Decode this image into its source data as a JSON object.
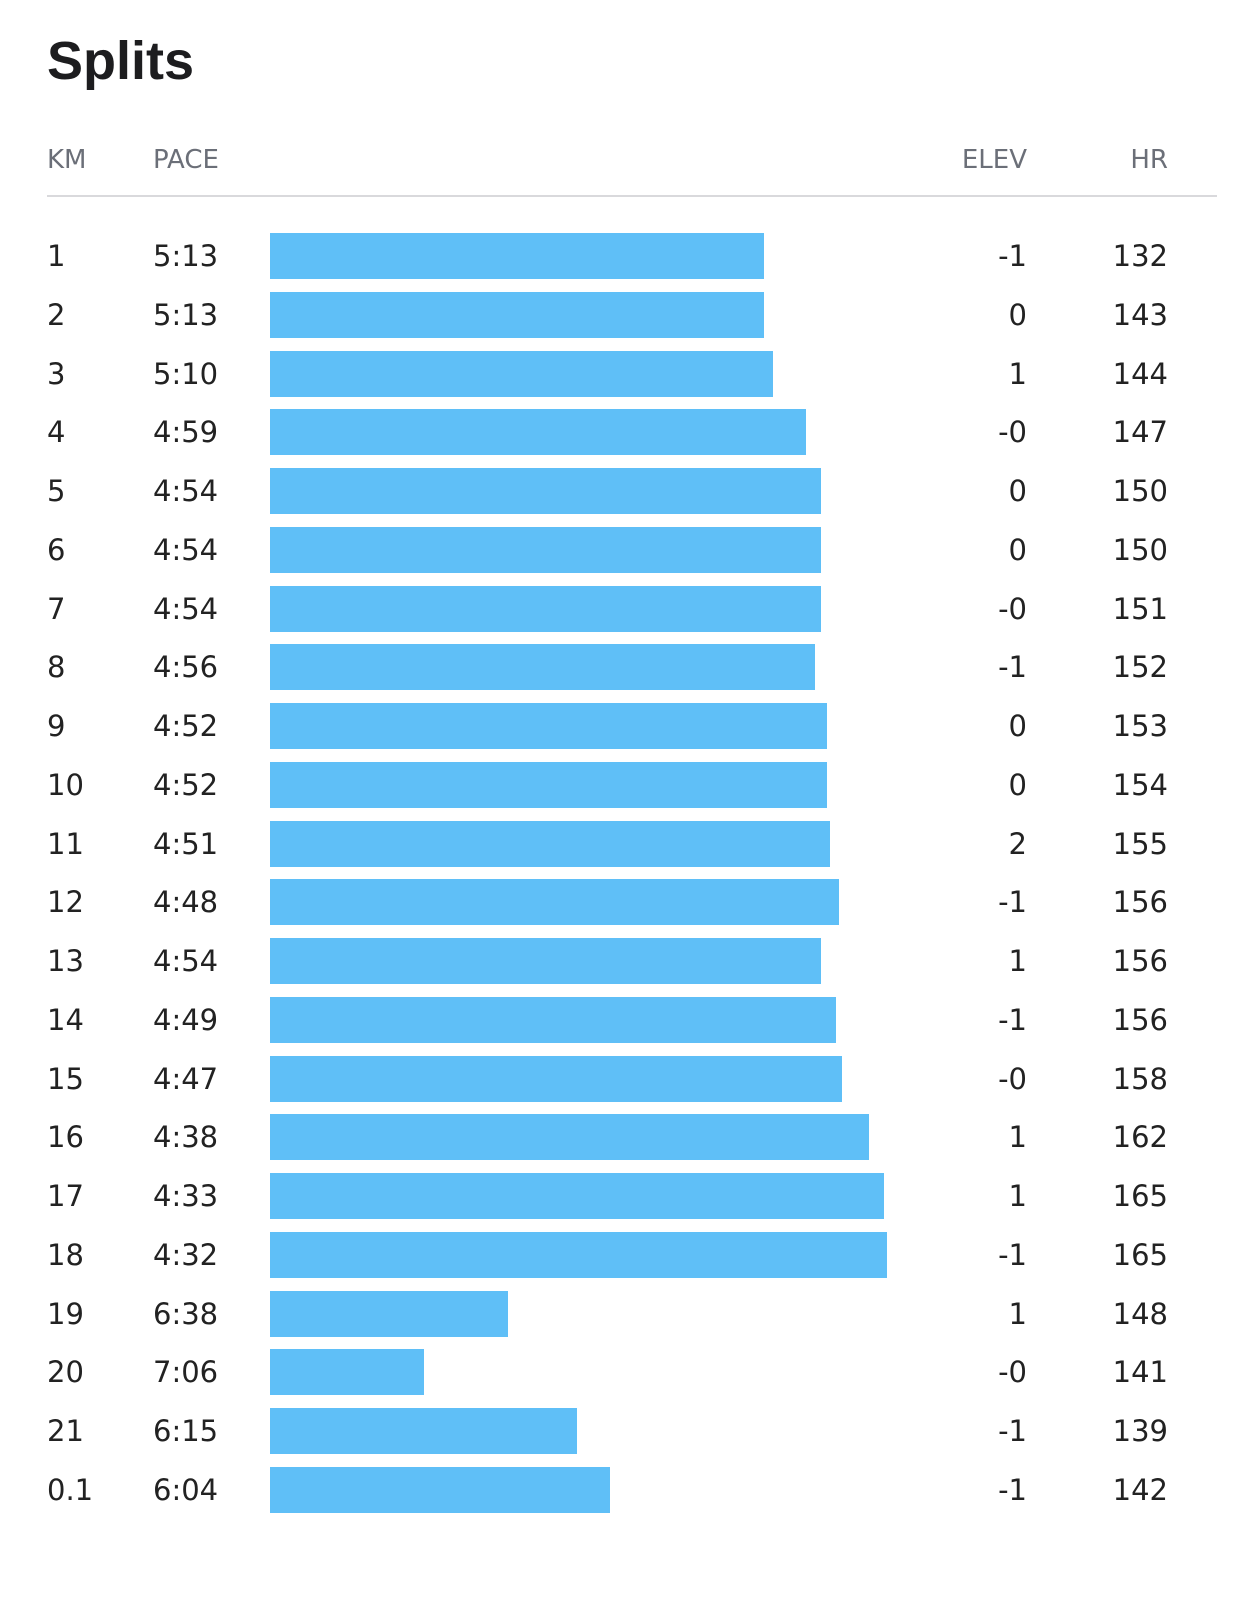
{
  "title": "Splits",
  "table": {
    "headers": [
      "KM",
      "PACE",
      "ELEV",
      "HR"
    ],
    "km": [
      "1",
      "2",
      "3",
      "4",
      "5",
      "6",
      "7",
      "8",
      "9",
      "10",
      "11",
      "12",
      "13",
      "14",
      "15",
      "16",
      "17",
      "18",
      "19",
      "20",
      "21",
      "0.1"
    ],
    "pace": {
      "values": [
        313,
        313,
        310,
        299,
        294,
        294,
        294,
        296,
        292,
        292,
        291,
        288,
        294,
        289,
        287,
        278,
        273,
        272,
        398,
        426,
        375,
        364
      ],
      "value_labels": [
        "5:13",
        "5:13",
        "5:10",
        "4:59",
        "4:54",
        "4:54",
        "4:54",
        "4:56",
        "4:52",
        "4:52",
        "4:51",
        "4:48",
        "4:54",
        "4:49",
        "4:47",
        "4:38",
        "4:33",
        "4:32",
        "6:38",
        "7:06",
        "6:15",
        "6:04"
      ]
    },
    "elev": [
      "-1",
      "0",
      "1",
      "-0",
      "0",
      "0",
      "-0",
      "-1",
      "0",
      "0",
      "2",
      "-1",
      "1",
      "-1",
      "-0",
      "1",
      "1",
      "-1",
      "1",
      "-0",
      "-1",
      "-1"
    ],
    "hr": [
      132,
      143,
      144,
      147,
      150,
      150,
      151,
      152,
      153,
      154,
      155,
      156,
      156,
      156,
      158,
      162,
      165,
      165,
      148,
      141,
      139,
      142
    ],
    "bar_color": "#5fbff7"
  }
}
